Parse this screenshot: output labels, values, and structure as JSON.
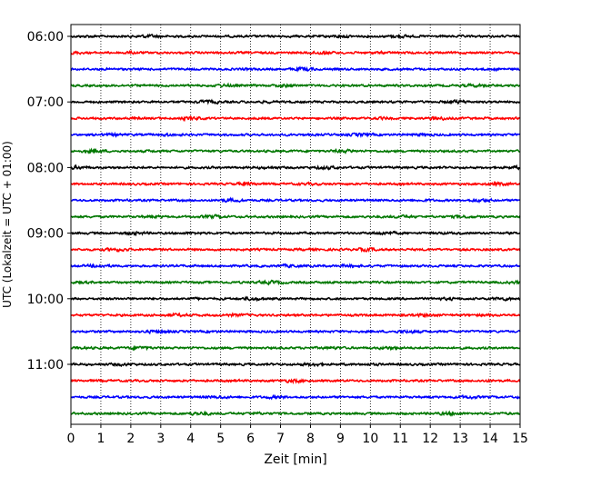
{
  "chart_data": {
    "type": "line",
    "title": "",
    "xlabel": "Zeit  [min]",
    "ylabel": "UTC (Lokalzeit = UTC + 01:00)",
    "xlim": [
      0,
      15
    ],
    "x_ticks": [
      0,
      1,
      2,
      3,
      4,
      5,
      6,
      7,
      8,
      9,
      10,
      11,
      12,
      13,
      14,
      15
    ],
    "x_tick_labels": [
      "0",
      "1",
      "2",
      "3",
      "4",
      "5",
      "6",
      "7",
      "8",
      "9",
      "10",
      "11",
      "12",
      "13",
      "14",
      "15"
    ],
    "y_ticks": [
      {
        "label": "06:00",
        "row": 0
      },
      {
        "label": "07:00",
        "row": 4
      },
      {
        "label": "08:00",
        "row": 8
      },
      {
        "label": "09:00",
        "row": 12
      },
      {
        "label": "10:00",
        "row": 16
      },
      {
        "label": "11:00",
        "row": 20
      }
    ],
    "grid_x": true,
    "grid_style": "dotted",
    "trace_interval_min": 15,
    "trace_colors": [
      "#000000",
      "#ff0000",
      "#0000ff",
      "#007700"
    ],
    "trace_start_times": [
      "06:00",
      "06:15",
      "06:30",
      "06:45",
      "07:00",
      "07:15",
      "07:30",
      "07:45",
      "08:00",
      "08:15",
      "08:30",
      "08:45",
      "09:00",
      "09:15",
      "09:30",
      "09:45",
      "10:00",
      "10:15",
      "10:30",
      "10:45",
      "11:00",
      "11:15",
      "11:30",
      "11:45"
    ]
  }
}
